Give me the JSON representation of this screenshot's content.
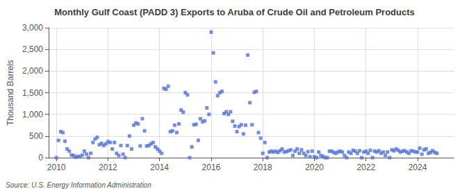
{
  "chart_data": {
    "type": "scatter",
    "title": "Monthly Gulf Coast (PADD 3) Exports to Aruba of Crude Oil and Petroleum Products",
    "ylabel": "Thousand Barrels",
    "annotations": [
      "Source: U.S. Energy Information Administration"
    ],
    "marker": "square",
    "grid": true,
    "xlim": [
      2009.7,
      2025.4
    ],
    "xticks": [
      2010,
      2012,
      2014,
      2016,
      2018,
      2020,
      2022,
      2024
    ],
    "ylim": [
      0,
      3000
    ],
    "yticks": [
      0,
      500,
      {
        "value": 1000,
        "label": "1,000"
      },
      {
        "value": 1500,
        "label": "1,500"
      },
      {
        "value": 2000,
        "label": "2,000"
      },
      {
        "value": 2500,
        "label": "2,500"
      },
      {
        "value": 3000,
        "label": "3,000"
      }
    ],
    "x": [
      2010.0,
      2010.083,
      2010.167,
      2010.25,
      2010.333,
      2010.417,
      2010.5,
      2010.583,
      2010.667,
      2010.75,
      2010.833,
      2010.917,
      2011.0,
      2011.083,
      2011.167,
      2011.25,
      2011.333,
      2011.417,
      2011.5,
      2011.583,
      2011.667,
      2011.75,
      2011.833,
      2011.917,
      2012.0,
      2012.083,
      2012.167,
      2012.25,
      2012.333,
      2012.417,
      2012.5,
      2012.583,
      2012.667,
      2012.75,
      2012.833,
      2012.917,
      2013.0,
      2013.083,
      2013.167,
      2013.25,
      2013.333,
      2013.417,
      2013.5,
      2013.583,
      2013.667,
      2013.75,
      2013.833,
      2013.917,
      2014.0,
      2014.083,
      2014.167,
      2014.25,
      2014.333,
      2014.417,
      2014.5,
      2014.583,
      2014.667,
      2014.75,
      2014.833,
      2014.917,
      2015.0,
      2015.083,
      2015.167,
      2015.25,
      2015.333,
      2015.417,
      2015.5,
      2015.583,
      2015.667,
      2015.75,
      2015.833,
      2015.917,
      2016.0,
      2016.083,
      2016.167,
      2016.25,
      2016.333,
      2016.417,
      2016.5,
      2016.583,
      2016.667,
      2016.75,
      2016.833,
      2016.917,
      2017.0,
      2017.083,
      2017.167,
      2017.25,
      2017.333,
      2017.417,
      2017.5,
      2017.583,
      2017.667,
      2017.75,
      2017.833,
      2017.917,
      2018.0,
      2018.083,
      2018.167,
      2018.25,
      2018.333,
      2018.417,
      2018.5,
      2018.583,
      2018.667,
      2018.75,
      2018.833,
      2018.917,
      2019.0,
      2019.083,
      2019.167,
      2019.25,
      2019.333,
      2019.417,
      2019.5,
      2019.583,
      2019.667,
      2019.75,
      2019.833,
      2019.917,
      2020.0,
      2020.083,
      2020.167,
      2020.25,
      2020.333,
      2020.417,
      2020.5,
      2020.583,
      2020.667,
      2020.75,
      2020.833,
      2020.917,
      2021.0,
      2021.083,
      2021.167,
      2021.25,
      2021.333,
      2021.417,
      2021.5,
      2021.583,
      2021.667,
      2021.75,
      2021.833,
      2021.917,
      2022.0,
      2022.083,
      2022.167,
      2022.25,
      2022.333,
      2022.417,
      2022.5,
      2022.583,
      2022.667,
      2022.75,
      2022.833,
      2022.917,
      2023.0,
      2023.083,
      2023.167,
      2023.25,
      2023.333,
      2023.417,
      2023.5,
      2023.583,
      2023.667,
      2023.75,
      2023.833,
      2023.917,
      2024.0,
      2024.083,
      2024.167,
      2024.25,
      2024.333,
      2024.417,
      2024.5,
      2024.583,
      2024.667,
      2024.75
    ],
    "values": [
      0,
      400,
      600,
      580,
      380,
      200,
      150,
      60,
      50,
      10,
      30,
      20,
      60,
      150,
      80,
      0,
      100,
      350,
      430,
      470,
      300,
      330,
      280,
      320,
      370,
      350,
      200,
      350,
      100,
      50,
      280,
      80,
      0,
      280,
      500,
      200,
      750,
      800,
      780,
      270,
      900,
      620,
      270,
      280,
      320,
      350,
      250,
      200,
      150,
      100,
      1600,
      1580,
      1650,
      600,
      620,
      750,
      580,
      780,
      1100,
      1050,
      1500,
      1450,
      0,
      250,
      760,
      770,
      400,
      900,
      830,
      850,
      1150,
      1000,
      2900,
      2420,
      1750,
      1430,
      1500,
      1530,
      1020,
      1060,
      1000,
      1060,
      840,
      730,
      600,
      720,
      760,
      550,
      750,
      2370,
      1270,
      760,
      1510,
      1530,
      580,
      450,
      100,
      350,
      0,
      130,
      150,
      130,
      150,
      120,
      160,
      200,
      130,
      140,
      160,
      180,
      50,
      150,
      200,
      100,
      180,
      100,
      50,
      140,
      20,
      150,
      20,
      0,
      130,
      50,
      30,
      0,
      0,
      150,
      150,
      120,
      100,
      130,
      150,
      130,
      50,
      0,
      130,
      100,
      170,
      150,
      100,
      160,
      0,
      130,
      150,
      100,
      170,
      0,
      150,
      130,
      160,
      100,
      130,
      50,
      130,
      0,
      180,
      160,
      200,
      170,
      130,
      150,
      160,
      130,
      100,
      160,
      150,
      130,
      130,
      220,
      80,
      180,
      200,
      100,
      120,
      160,
      120,
      100
    ]
  }
}
